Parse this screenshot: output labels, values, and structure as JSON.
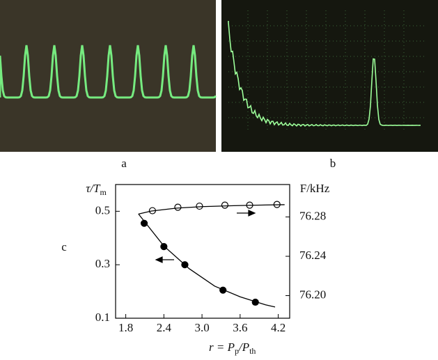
{
  "panels": [
    "a",
    "b",
    "c"
  ],
  "chart_data": {
    "type": "scatter",
    "xlabel": [
      "r = P",
      "p",
      "/P",
      "th"
    ],
    "ylabel": [
      "τ/T",
      "m"
    ],
    "y2label": "F/kHz",
    "xlim": [
      1.64,
      4.38
    ],
    "ylim": [
      0.1,
      0.6
    ],
    "y2lim": [
      76.177,
      76.313
    ],
    "xticks": [
      1.8,
      2.4,
      {
        "value": 3,
        "label": "3.0"
      },
      3.6,
      4.2
    ],
    "yticks": [
      0.1,
      0.3,
      0.5
    ],
    "y2ticks": [
      {
        "value": 76.2,
        "label": "76.20"
      },
      76.24,
      76.28
    ],
    "series": [
      {
        "marker": "filled",
        "color": "#000000",
        "x": [
          2.09,
          2.4,
          2.73,
          3.33,
          3.84
        ],
        "values": [
          0.455,
          0.368,
          0.3,
          0.205,
          0.16
        ]
      },
      {
        "marker": "open",
        "axis": "y2",
        "color": "#000000",
        "x": [
          2.22,
          2.62,
          2.96,
          3.36,
          3.75,
          4.18
        ],
        "values": [
          76.2864,
          76.2899,
          76.291,
          76.292,
          76.292,
          76.2927
        ]
      },
      {
        "marker": "line",
        "color": "#000000",
        "x": [
          2.0,
          2.4,
          2.8,
          3.2,
          3.6,
          4.0,
          4.15
        ],
        "values": [
          0.49,
          0.37,
          0.285,
          0.22,
          0.18,
          0.15,
          0.142
        ]
      },
      {
        "marker": "line",
        "axis": "y2",
        "color": "#000000",
        "x": [
          2.0,
          2.2,
          2.6,
          3.0,
          3.5,
          4.0,
          4.3
        ],
        "values": [
          76.283,
          76.286,
          76.289,
          76.2905,
          76.2915,
          76.2922,
          76.2925
        ]
      }
    ]
  }
}
